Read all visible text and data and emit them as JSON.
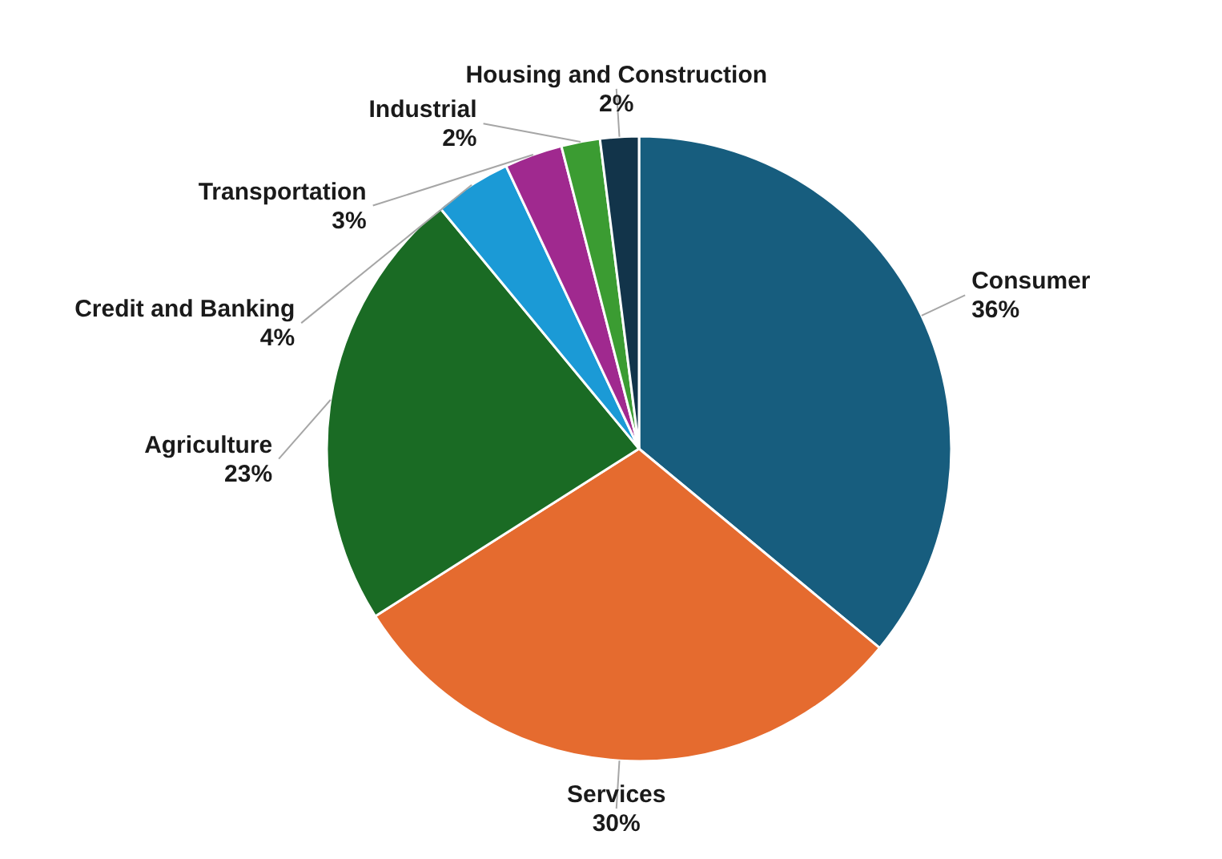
{
  "chart_data": {
    "type": "pie",
    "categories": [
      "Consumer",
      "Services",
      "Agriculture",
      "Credit and Banking",
      "Transportation",
      "Industrial",
      "Housing and Construction"
    ],
    "values": [
      36,
      30,
      23,
      4,
      3,
      2,
      2
    ],
    "colors": [
      "#175d7e",
      "#e56b2f",
      "#1a6b24",
      "#1b9ad6",
      "#a0298f",
      "#3b9c32",
      "#12344a"
    ],
    "value_labels": [
      "36%",
      "30%",
      "23%",
      "4%",
      "3%",
      "2%",
      "2%"
    ]
  }
}
